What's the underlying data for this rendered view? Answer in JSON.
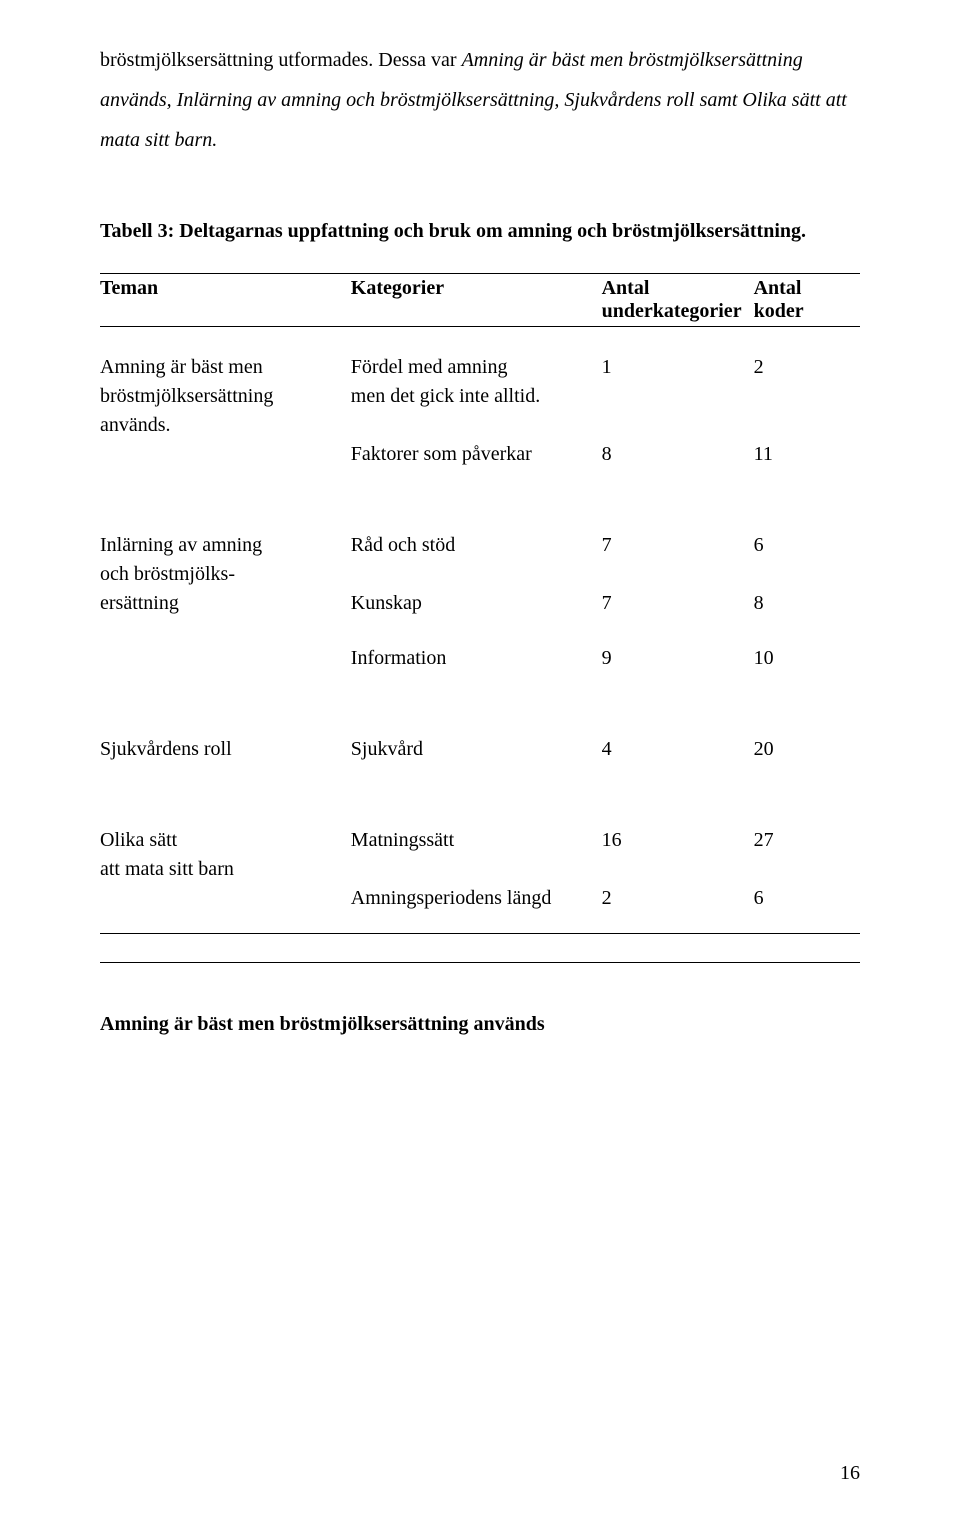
{
  "intro": {
    "plain_prefix": "bröstmjölksersättning utformades. Dessa var ",
    "italic_span": "Amning är bäst men bröstmjölksersättning används, Inlärning av amning och bröstmjölksersättning, Sjukvårdens roll samt Olika sätt att mata sitt barn.",
    "plain_suffix": ""
  },
  "table_title": "Tabell 3: Deltagarnas uppfattning och bruk om amning och bröstmjölksersättning.",
  "headers": {
    "c1": "Teman",
    "c2": "Kategorier",
    "c3_line1": "Antal",
    "c3_line2": "underkategorier",
    "c4_line1": "Antal",
    "c4_line2": "koder"
  },
  "group1": {
    "teman_l1": "Amning är bäst men",
    "teman_l2": "bröstmjölksersättning",
    "teman_l3": "används.",
    "kat1_l1": "Fördel med amning",
    "kat1_l2": "men det gick inte alltid.",
    "kat1_v1": "1",
    "kat1_v2": "2",
    "kat2": "Faktorer som påverkar",
    "kat2_v1": "8",
    "kat2_v2": "11"
  },
  "group2": {
    "teman_l1": "Inlärning av amning",
    "teman_l2": "och bröstmjölks-",
    "teman_l3": "ersättning",
    "kat1": "Råd och stöd",
    "kat1_v1": "7",
    "kat1_v2": "6",
    "kat2": "Kunskap",
    "kat2_v1": "7",
    "kat2_v2": "8",
    "kat3": "Information",
    "kat3_v1": "9",
    "kat3_v2": "10"
  },
  "group3": {
    "teman": "Sjukvårdens roll",
    "kat1": "Sjukvård",
    "kat1_v1": "4",
    "kat1_v2": "20"
  },
  "group4": {
    "teman_l1": "Olika sätt",
    "teman_l2": "att mata sitt barn",
    "kat1": "Matningssätt",
    "kat1_v1": "16",
    "kat1_v2": "27",
    "kat2": "Amningsperiodens längd",
    "kat2_v1": "2",
    "kat2_v2": "6"
  },
  "closing_heading": "Amning är bäst men bröstmjölksersättning används",
  "page_number": "16"
}
